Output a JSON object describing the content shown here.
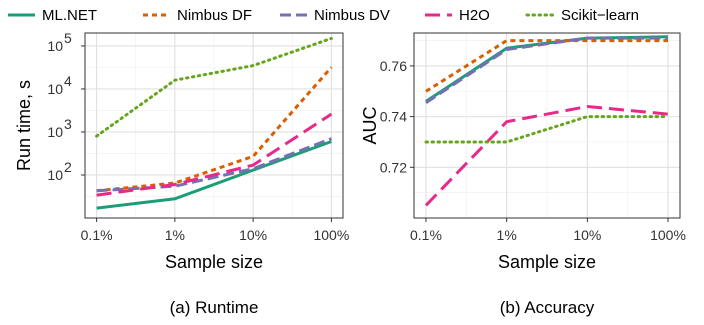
{
  "legend": [
    {
      "name": "ML.NET",
      "color": "#1b9e77",
      "dash": "solid"
    },
    {
      "name": "Nimbus DF",
      "color": "#d95f02",
      "dash": "dashed-short"
    },
    {
      "name": "Nimbus DV",
      "color": "#7570b3",
      "dash": "dashed-long"
    },
    {
      "name": "H2O",
      "color": "#e7298a",
      "dash": "dashed-longer"
    },
    {
      "name": "Scikit−learn",
      "color": "#66a61e",
      "dash": "dotted"
    }
  ],
  "chart_data": [
    {
      "type": "line",
      "caption": "(a) Runtime",
      "xlabel": "Sample size",
      "ylabel": "Run time, s",
      "categories": [
        "0.1%",
        "1%",
        "10%",
        "100%"
      ],
      "yscale": "log",
      "ylim": [
        10,
        200000
      ],
      "yticks": [
        100,
        1000,
        10000,
        100000
      ],
      "ytick_labels": [
        [
          "10",
          "2"
        ],
        [
          "10",
          "3"
        ],
        [
          "10",
          "4"
        ],
        [
          "10",
          "5"
        ]
      ],
      "grid": true,
      "series": [
        {
          "name": "ML.NET",
          "values": [
            17,
            28,
            130,
            600
          ]
        },
        {
          "name": "Nimbus DF",
          "values": [
            43,
            65,
            270,
            32000
          ]
        },
        {
          "name": "Nimbus DV",
          "values": [
            43,
            55,
            140,
            700
          ]
        },
        {
          "name": "H2O",
          "values": [
            34,
            60,
            170,
            2600
          ]
        },
        {
          "name": "Scikit−learn",
          "values": [
            800,
            16000,
            35000,
            150000
          ]
        }
      ]
    },
    {
      "type": "line",
      "caption": "(b) Accuracy",
      "xlabel": "Sample size",
      "ylabel": "AUC",
      "categories": [
        "0.1%",
        "1%",
        "10%",
        "100%"
      ],
      "yscale": "linear",
      "ylim": [
        0.7,
        0.773
      ],
      "yticks": [
        0.72,
        0.74,
        0.76
      ],
      "ytick_labels": [
        "0.72",
        "0.74",
        "0.76"
      ],
      "grid": true,
      "series": [
        {
          "name": "ML.NET",
          "values": [
            0.746,
            0.767,
            0.771,
            0.7715
          ]
        },
        {
          "name": "Nimbus DF",
          "values": [
            0.75,
            0.77,
            0.77,
            0.77
          ]
        },
        {
          "name": "Nimbus DV",
          "values": [
            0.7455,
            0.7665,
            0.771,
            0.771
          ]
        },
        {
          "name": "H2O",
          "values": [
            0.705,
            0.738,
            0.744,
            0.741
          ]
        },
        {
          "name": "Scikit−learn",
          "values": [
            0.73,
            0.73,
            0.74,
            0.74
          ]
        }
      ]
    }
  ]
}
